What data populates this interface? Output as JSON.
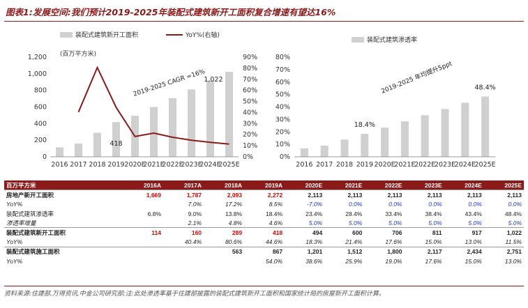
{
  "title": "图表1:发展空间:我们预计2019-2025年装配式建筑新开工面积复合增速有望达16%",
  "chart_data": [
    {
      "type": "bar",
      "categories": [
        "2016",
        "2017",
        "2018",
        "2019",
        "2020E",
        "2021E",
        "2022E",
        "2023E",
        "2024E",
        "2025E"
      ],
      "series": [
        {
          "name": "装配式建筑新开工面积",
          "type": "bar",
          "values": [
            114,
            160,
            289,
            418,
            494,
            600,
            706,
            811,
            917,
            1022
          ],
          "color": "#d0d0d0"
        },
        {
          "name": "YoY%(右轴)",
          "type": "line",
          "axis": "right",
          "values": [
            null,
            40.4,
            80.6,
            44.6,
            18.3,
            21.4,
            17.6,
            15.0,
            13.0,
            11.5
          ],
          "color": "#8b1a1a"
        }
      ],
      "ylabel": "(百万平方米)",
      "ylim": [
        0,
        1200
      ],
      "yticks": [
        "0",
        "200",
        "400",
        "600",
        "800",
        "1,000",
        "1,200"
      ],
      "y2lim": [
        0,
        90
      ],
      "y2ticks": [
        "0%",
        "10%",
        "20%",
        "30%",
        "40%",
        "50%",
        "60%",
        "70%",
        "80%",
        "90%"
      ],
      "annotations": [
        "2019-2025 CAGR =16%",
        "418",
        "1,022"
      ],
      "legend": "top"
    },
    {
      "type": "bar",
      "categories": [
        "2016",
        "2017",
        "2018",
        "2019",
        "2020E",
        "2021E",
        "2022E",
        "2023E",
        "2024E",
        "2025E"
      ],
      "series": [
        {
          "name": "装配式建筑渗透率",
          "values": [
            6.8,
            9.0,
            13.8,
            18.4,
            23.4,
            28.4,
            33.4,
            38.4,
            43.4,
            48.4
          ],
          "color": "#d0d0d0"
        }
      ],
      "ylim": [
        0,
        80
      ],
      "yticks": [
        "0%",
        "10%",
        "20%",
        "30%",
        "40%",
        "50%",
        "60%",
        "70%",
        "80%"
      ],
      "annotations": [
        "2019-2025 年均提升5ppt",
        "18.4%",
        "48.4%"
      ],
      "legend": "top"
    }
  ],
  "table": {
    "headers": [
      "百万平方米",
      "2016A",
      "2017A",
      "2018A",
      "2019A",
      "2020E",
      "2021E",
      "2022E",
      "2023E",
      "2024E",
      "2025E"
    ],
    "rows": [
      {
        "label": "房地产新开工面积",
        "style": "bold",
        "cells": [
          [
            "1,669",
            "red"
          ],
          [
            "1,787",
            "red"
          ],
          [
            "2,093",
            "red"
          ],
          [
            "2,272",
            "red"
          ],
          [
            "2,113",
            ""
          ],
          [
            "2,113",
            ""
          ],
          [
            "2,113",
            ""
          ],
          [
            "2,113",
            ""
          ],
          [
            "2,113",
            ""
          ],
          [
            "2,113",
            ""
          ]
        ]
      },
      {
        "label": "YoY%",
        "style": "italic",
        "cells": [
          [
            "",
            ""
          ],
          [
            "7.0%",
            ""
          ],
          [
            "17.2%",
            ""
          ],
          [
            "8.5%",
            ""
          ],
          [
            "-7.0%",
            "blue"
          ],
          [
            "0.0%",
            "blue"
          ],
          [
            "0.0%",
            "blue"
          ],
          [
            "0.0%",
            "blue"
          ],
          [
            "0.0%",
            "blue"
          ],
          [
            "0.0%",
            "blue"
          ]
        ]
      },
      {
        "label": "装配式建筑渗透率",
        "style": "",
        "cells": [
          [
            "6.8%",
            ""
          ],
          [
            "9.0%",
            ""
          ],
          [
            "13.8%",
            ""
          ],
          [
            "18.4%",
            ""
          ],
          [
            "23.4%",
            ""
          ],
          [
            "28.4%",
            ""
          ],
          [
            "33.4%",
            ""
          ],
          [
            "38.4%",
            ""
          ],
          [
            "43.4%",
            ""
          ],
          [
            "48.4%",
            ""
          ]
        ]
      },
      {
        "label": "渗透率增量",
        "style": "italic",
        "cells": [
          [
            "",
            ""
          ],
          [
            "2.1%",
            ""
          ],
          [
            "4.8%",
            ""
          ],
          [
            "4.6%",
            ""
          ],
          [
            "5.0%",
            "blue"
          ],
          [
            "5.0%",
            "blue"
          ],
          [
            "5.0%",
            "blue"
          ],
          [
            "5.0%",
            "blue"
          ],
          [
            "5.0%",
            "blue"
          ],
          [
            "5.0%",
            "blue"
          ]
        ]
      },
      {
        "label": "装配式建筑新开工面积",
        "style": "bold",
        "cells": [
          [
            "114",
            "red"
          ],
          [
            "160",
            "red"
          ],
          [
            "289",
            "red"
          ],
          [
            "418",
            "red"
          ],
          [
            "494",
            ""
          ],
          [
            "600",
            ""
          ],
          [
            "706",
            ""
          ],
          [
            "811",
            ""
          ],
          [
            "917",
            ""
          ],
          [
            "1,022",
            ""
          ]
        ]
      },
      {
        "label": "YoY%",
        "style": "italic",
        "cells": [
          [
            "",
            ""
          ],
          [
            "40.4%",
            ""
          ],
          [
            "80.6%",
            ""
          ],
          [
            "44.6%",
            ""
          ],
          [
            "18.3%",
            ""
          ],
          [
            "21.4%",
            ""
          ],
          [
            "17.6%",
            ""
          ],
          [
            "15.0%",
            ""
          ],
          [
            "13.0%",
            ""
          ],
          [
            "11.5%",
            ""
          ]
        ]
      },
      {
        "label": "装配式建筑施工面积",
        "style": "bold",
        "cells": [
          [
            "",
            ""
          ],
          [
            "",
            ""
          ],
          [
            "563",
            ""
          ],
          [
            "867",
            ""
          ],
          [
            "1,201",
            ""
          ],
          [
            "1,512",
            ""
          ],
          [
            "1,800",
            ""
          ],
          [
            "2,117",
            ""
          ],
          [
            "2,434",
            ""
          ],
          [
            "2,751",
            ""
          ]
        ]
      },
      {
        "label": "YoY%",
        "style": "italic",
        "cells": [
          [
            "",
            ""
          ],
          [
            "",
            ""
          ],
          [
            "",
            ""
          ],
          [
            "54.0%",
            ""
          ],
          [
            "38.6%",
            ""
          ],
          [
            "25.9%",
            ""
          ],
          [
            "19.0%",
            ""
          ],
          [
            "17.6%",
            ""
          ],
          [
            "15.0%",
            ""
          ],
          [
            "13.0%",
            ""
          ]
        ]
      }
    ]
  },
  "footer": "资料来源:住建部,万得资讯,中金公司研究部;注:此处渗透率基于住建部披露的装配式建筑新开工面积和国家统计局的房屋新开工面积计算。"
}
